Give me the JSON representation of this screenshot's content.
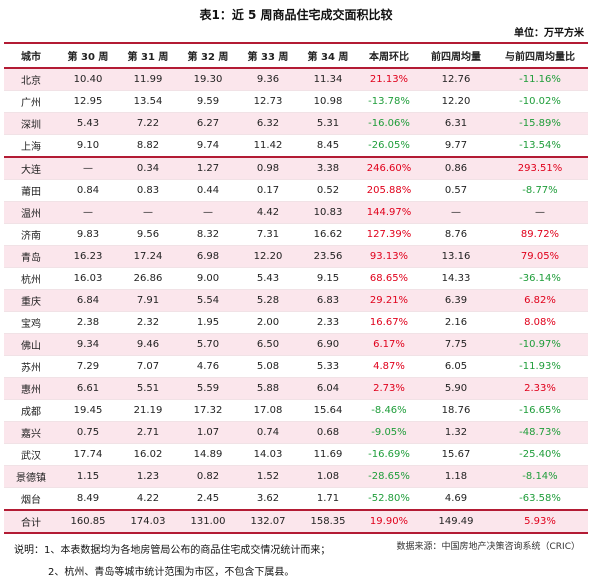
{
  "title": "表1：近 5 周商品住宅成交面积比较",
  "unit": "单位：万平方米",
  "headers": [
    "城市",
    "第 30 周",
    "第 31 周",
    "第 32 周",
    "第 33 周",
    "第 34 周",
    "本周环比",
    "前四周均量",
    "与前四周均量比"
  ],
  "rows": [
    [
      "北京",
      "10.40",
      "11.99",
      "19.30",
      "9.36",
      "11.34",
      "21.13%",
      "12.76",
      "-11.16%"
    ],
    [
      "广州",
      "12.95",
      "13.54",
      "9.59",
      "12.73",
      "10.98",
      "-13.78%",
      "12.20",
      "-10.02%"
    ],
    [
      "深圳",
      "5.43",
      "7.22",
      "6.27",
      "6.32",
      "5.31",
      "-16.06%",
      "6.31",
      "-15.89%"
    ],
    [
      "上海",
      "9.10",
      "8.82",
      "9.74",
      "11.42",
      "8.45",
      "-26.05%",
      "9.77",
      "-13.54%"
    ],
    [
      "大连",
      "—",
      "0.34",
      "1.27",
      "0.98",
      "3.38",
      "246.60%",
      "0.86",
      "293.51%"
    ],
    [
      "莆田",
      "0.84",
      "0.83",
      "0.44",
      "0.17",
      "0.52",
      "205.88%",
      "0.57",
      "-8.77%"
    ],
    [
      "温州",
      "—",
      "—",
      "—",
      "4.42",
      "10.83",
      "144.97%",
      "—",
      "—"
    ],
    [
      "济南",
      "9.83",
      "9.56",
      "8.32",
      "7.31",
      "16.62",
      "127.39%",
      "8.76",
      "89.72%"
    ],
    [
      "青岛",
      "16.23",
      "17.24",
      "6.98",
      "12.20",
      "23.56",
      "93.13%",
      "13.16",
      "79.05%"
    ],
    [
      "杭州",
      "16.03",
      "26.86",
      "9.00",
      "5.43",
      "9.15",
      "68.65%",
      "14.33",
      "-36.14%"
    ],
    [
      "重庆",
      "6.84",
      "7.91",
      "5.54",
      "5.28",
      "6.83",
      "29.21%",
      "6.39",
      "6.82%"
    ],
    [
      "宝鸡",
      "2.38",
      "2.32",
      "1.95",
      "2.00",
      "2.33",
      "16.67%",
      "2.16",
      "8.08%"
    ],
    [
      "佛山",
      "9.34",
      "9.46",
      "5.70",
      "6.50",
      "6.90",
      "6.17%",
      "7.75",
      "-10.97%"
    ],
    [
      "苏州",
      "7.29",
      "7.07",
      "4.76",
      "5.08",
      "5.33",
      "4.87%",
      "6.05",
      "-11.93%"
    ],
    [
      "惠州",
      "6.61",
      "5.51",
      "5.59",
      "5.88",
      "6.04",
      "2.73%",
      "5.90",
      "2.33%"
    ],
    [
      "成都",
      "19.45",
      "21.19",
      "17.32",
      "17.08",
      "15.64",
      "-8.46%",
      "18.76",
      "-16.65%"
    ],
    [
      "嘉兴",
      "0.75",
      "2.71",
      "1.07",
      "0.74",
      "0.68",
      "-9.05%",
      "1.32",
      "-48.73%"
    ],
    [
      "武汉",
      "17.74",
      "16.02",
      "14.89",
      "14.03",
      "11.69",
      "-16.69%",
      "15.67",
      "-25.40%"
    ],
    [
      "景德镇",
      "1.15",
      "1.23",
      "0.82",
      "1.52",
      "1.08",
      "-28.65%",
      "1.18",
      "-8.14%"
    ],
    [
      "烟台",
      "8.49",
      "4.22",
      "2.45",
      "3.62",
      "1.71",
      "-52.80%",
      "4.69",
      "-63.58%"
    ]
  ],
  "total": [
    "合计",
    "160.85",
    "174.03",
    "131.00",
    "132.07",
    "158.35",
    "19.90%",
    "149.49",
    "5.93%"
  ],
  "notes": {
    "line1": "说明：1、本表数据均为各地房管局公布的商品住宅成交情况统计而来；",
    "line2": "2、杭州、青岛等城市统计范围为市区，不包含下属县。"
  },
  "source": "数据来源：中国房地产决策咨询系统（CRIC）",
  "colors": {
    "accent": "#b31b34",
    "shade": "#fbe6ec",
    "up": "#e0001b",
    "down": "#1f9d3a"
  }
}
